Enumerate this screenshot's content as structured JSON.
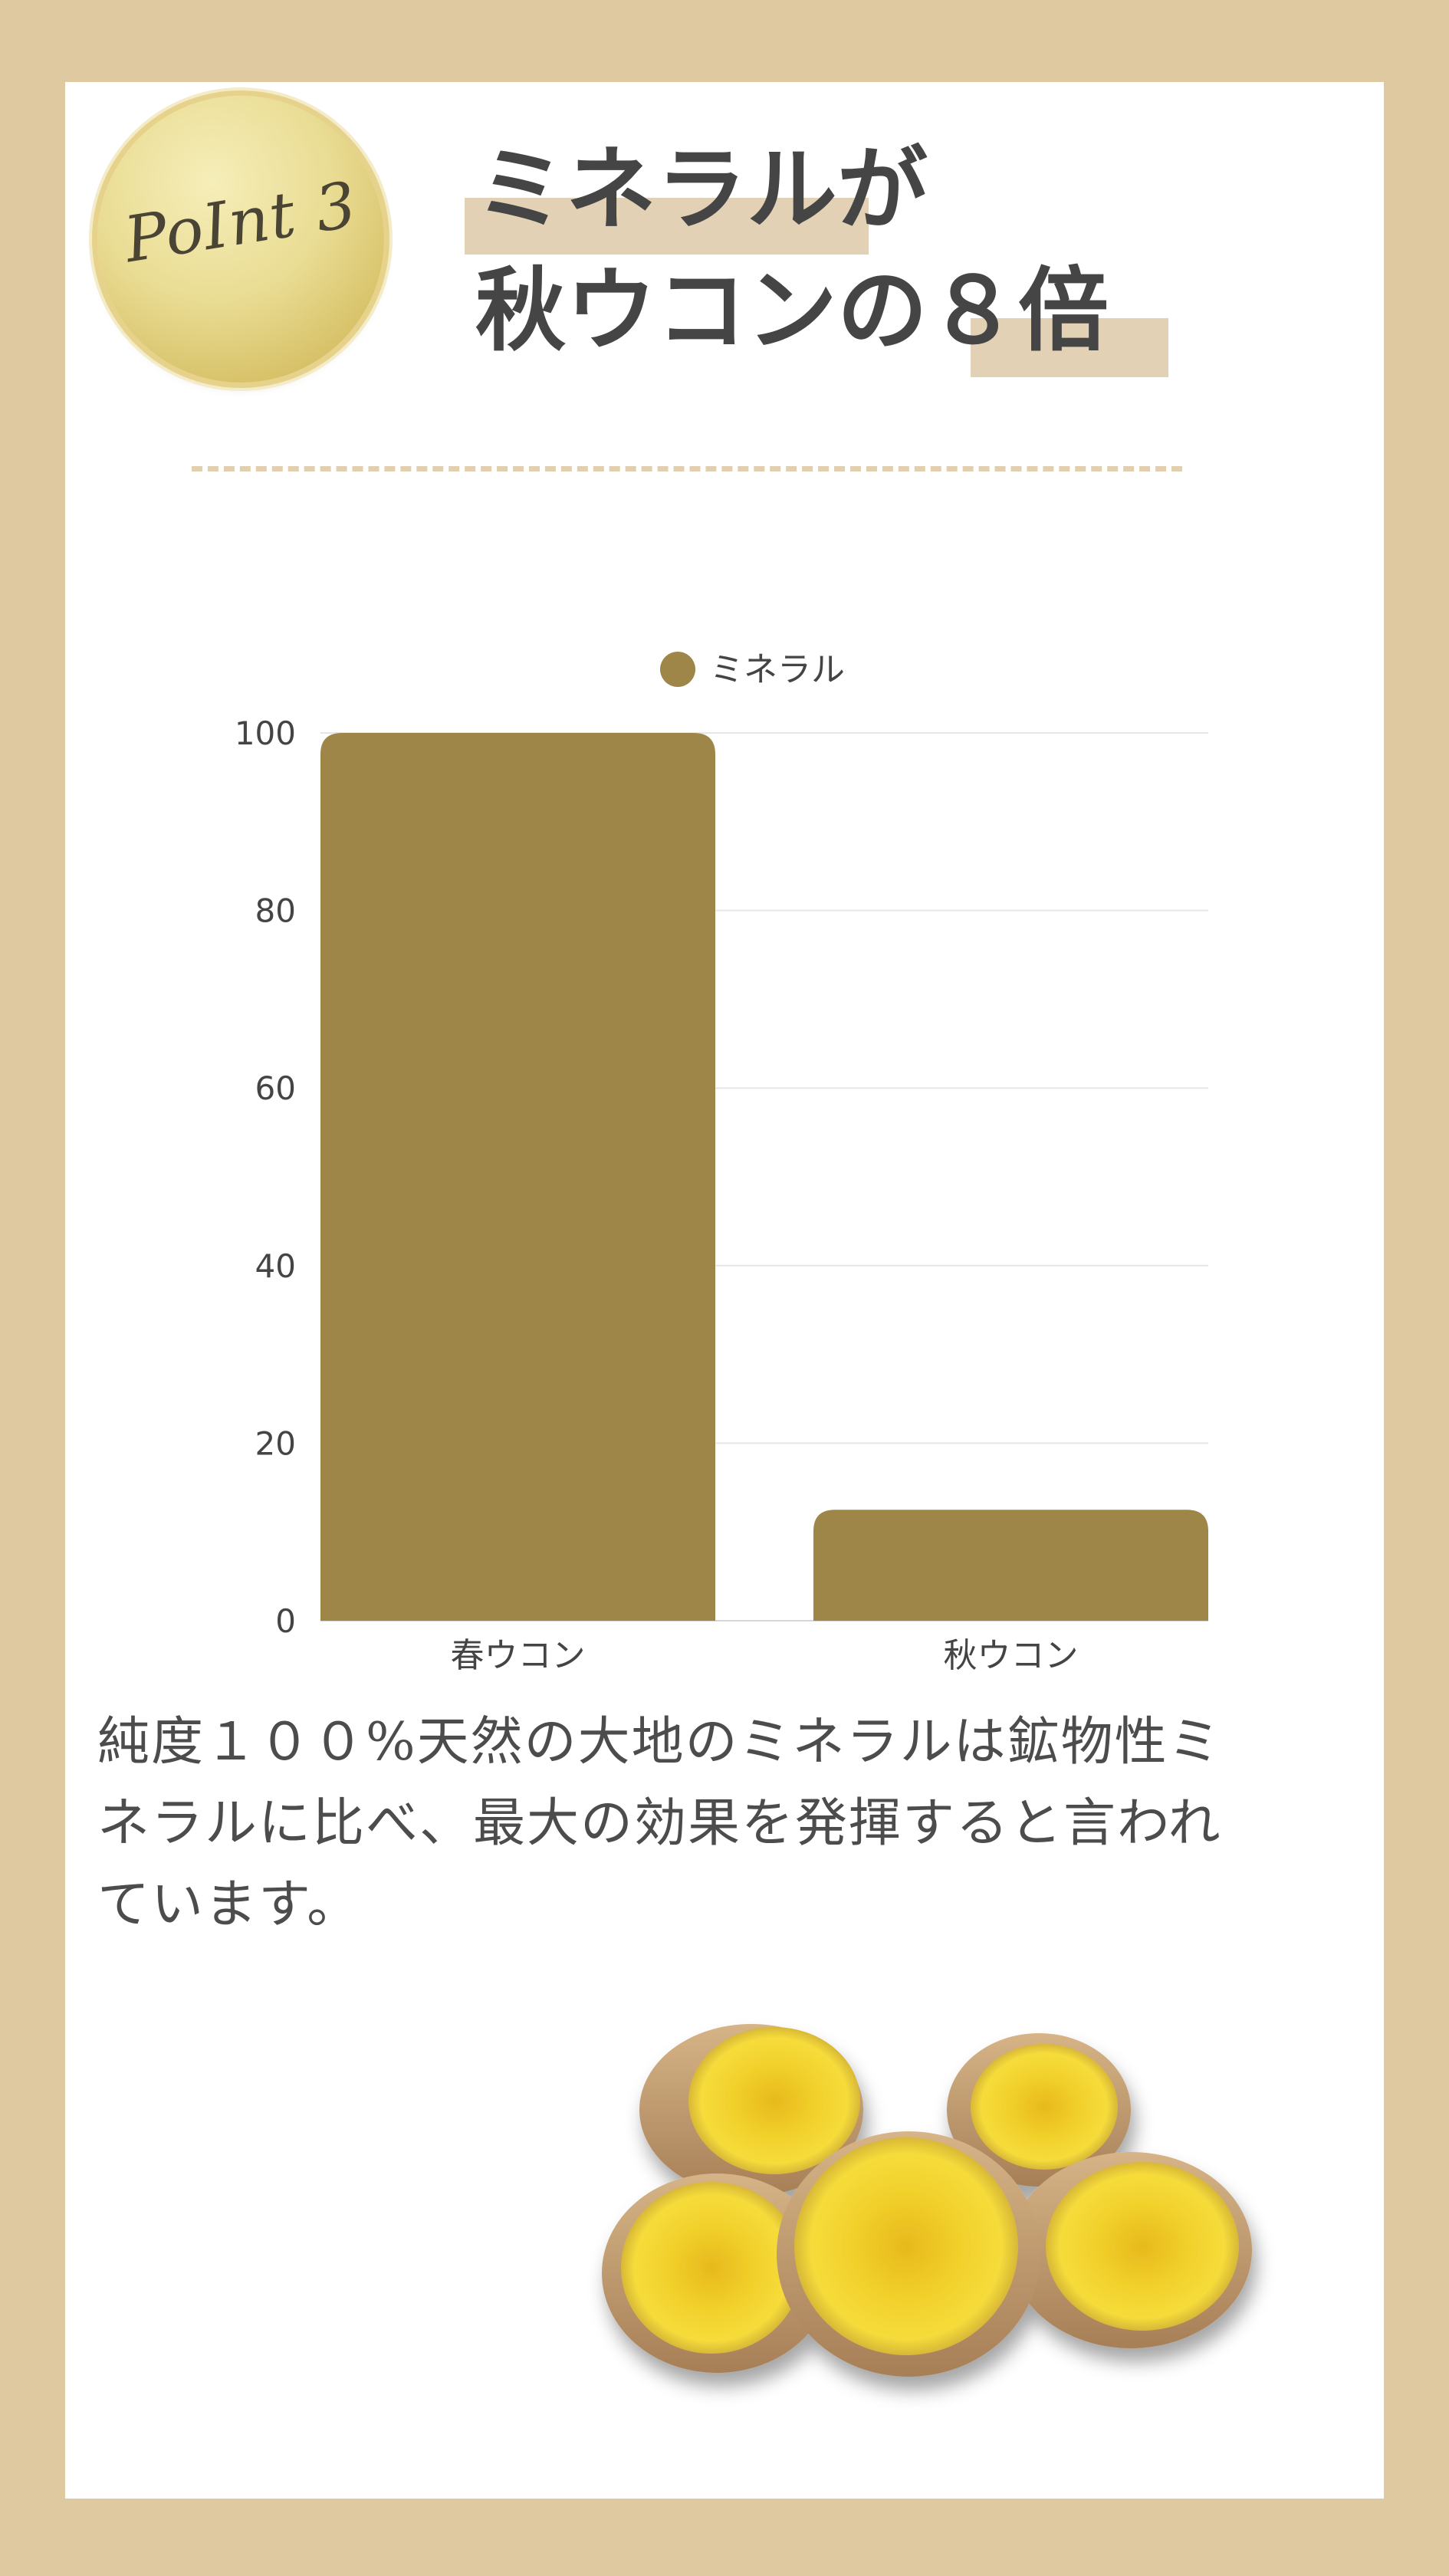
{
  "badge": {
    "label": "PoInt 3"
  },
  "headline": {
    "line1": "ミネラルが",
    "line2": "秋ウコンの８倍"
  },
  "chart_data": {
    "type": "bar",
    "categories": [
      "春ウコン",
      "秋ウコン"
    ],
    "series": [
      {
        "name": "ミネラル",
        "values": [
          100,
          12.5
        ],
        "color": "#9e8648"
      }
    ],
    "yticks": [
      0,
      20,
      40,
      60,
      80,
      100
    ],
    "ylim": [
      0,
      100
    ],
    "grid": true,
    "legend": "top-center",
    "title": "",
    "xlabel": "",
    "ylabel": ""
  },
  "description": "純度１００%天然の大地のミネラルは鉱物性ミネラルに比べ、最大の効果を発揮すると言われています。",
  "image": {
    "icon": "turmeric-roots-illustration"
  }
}
